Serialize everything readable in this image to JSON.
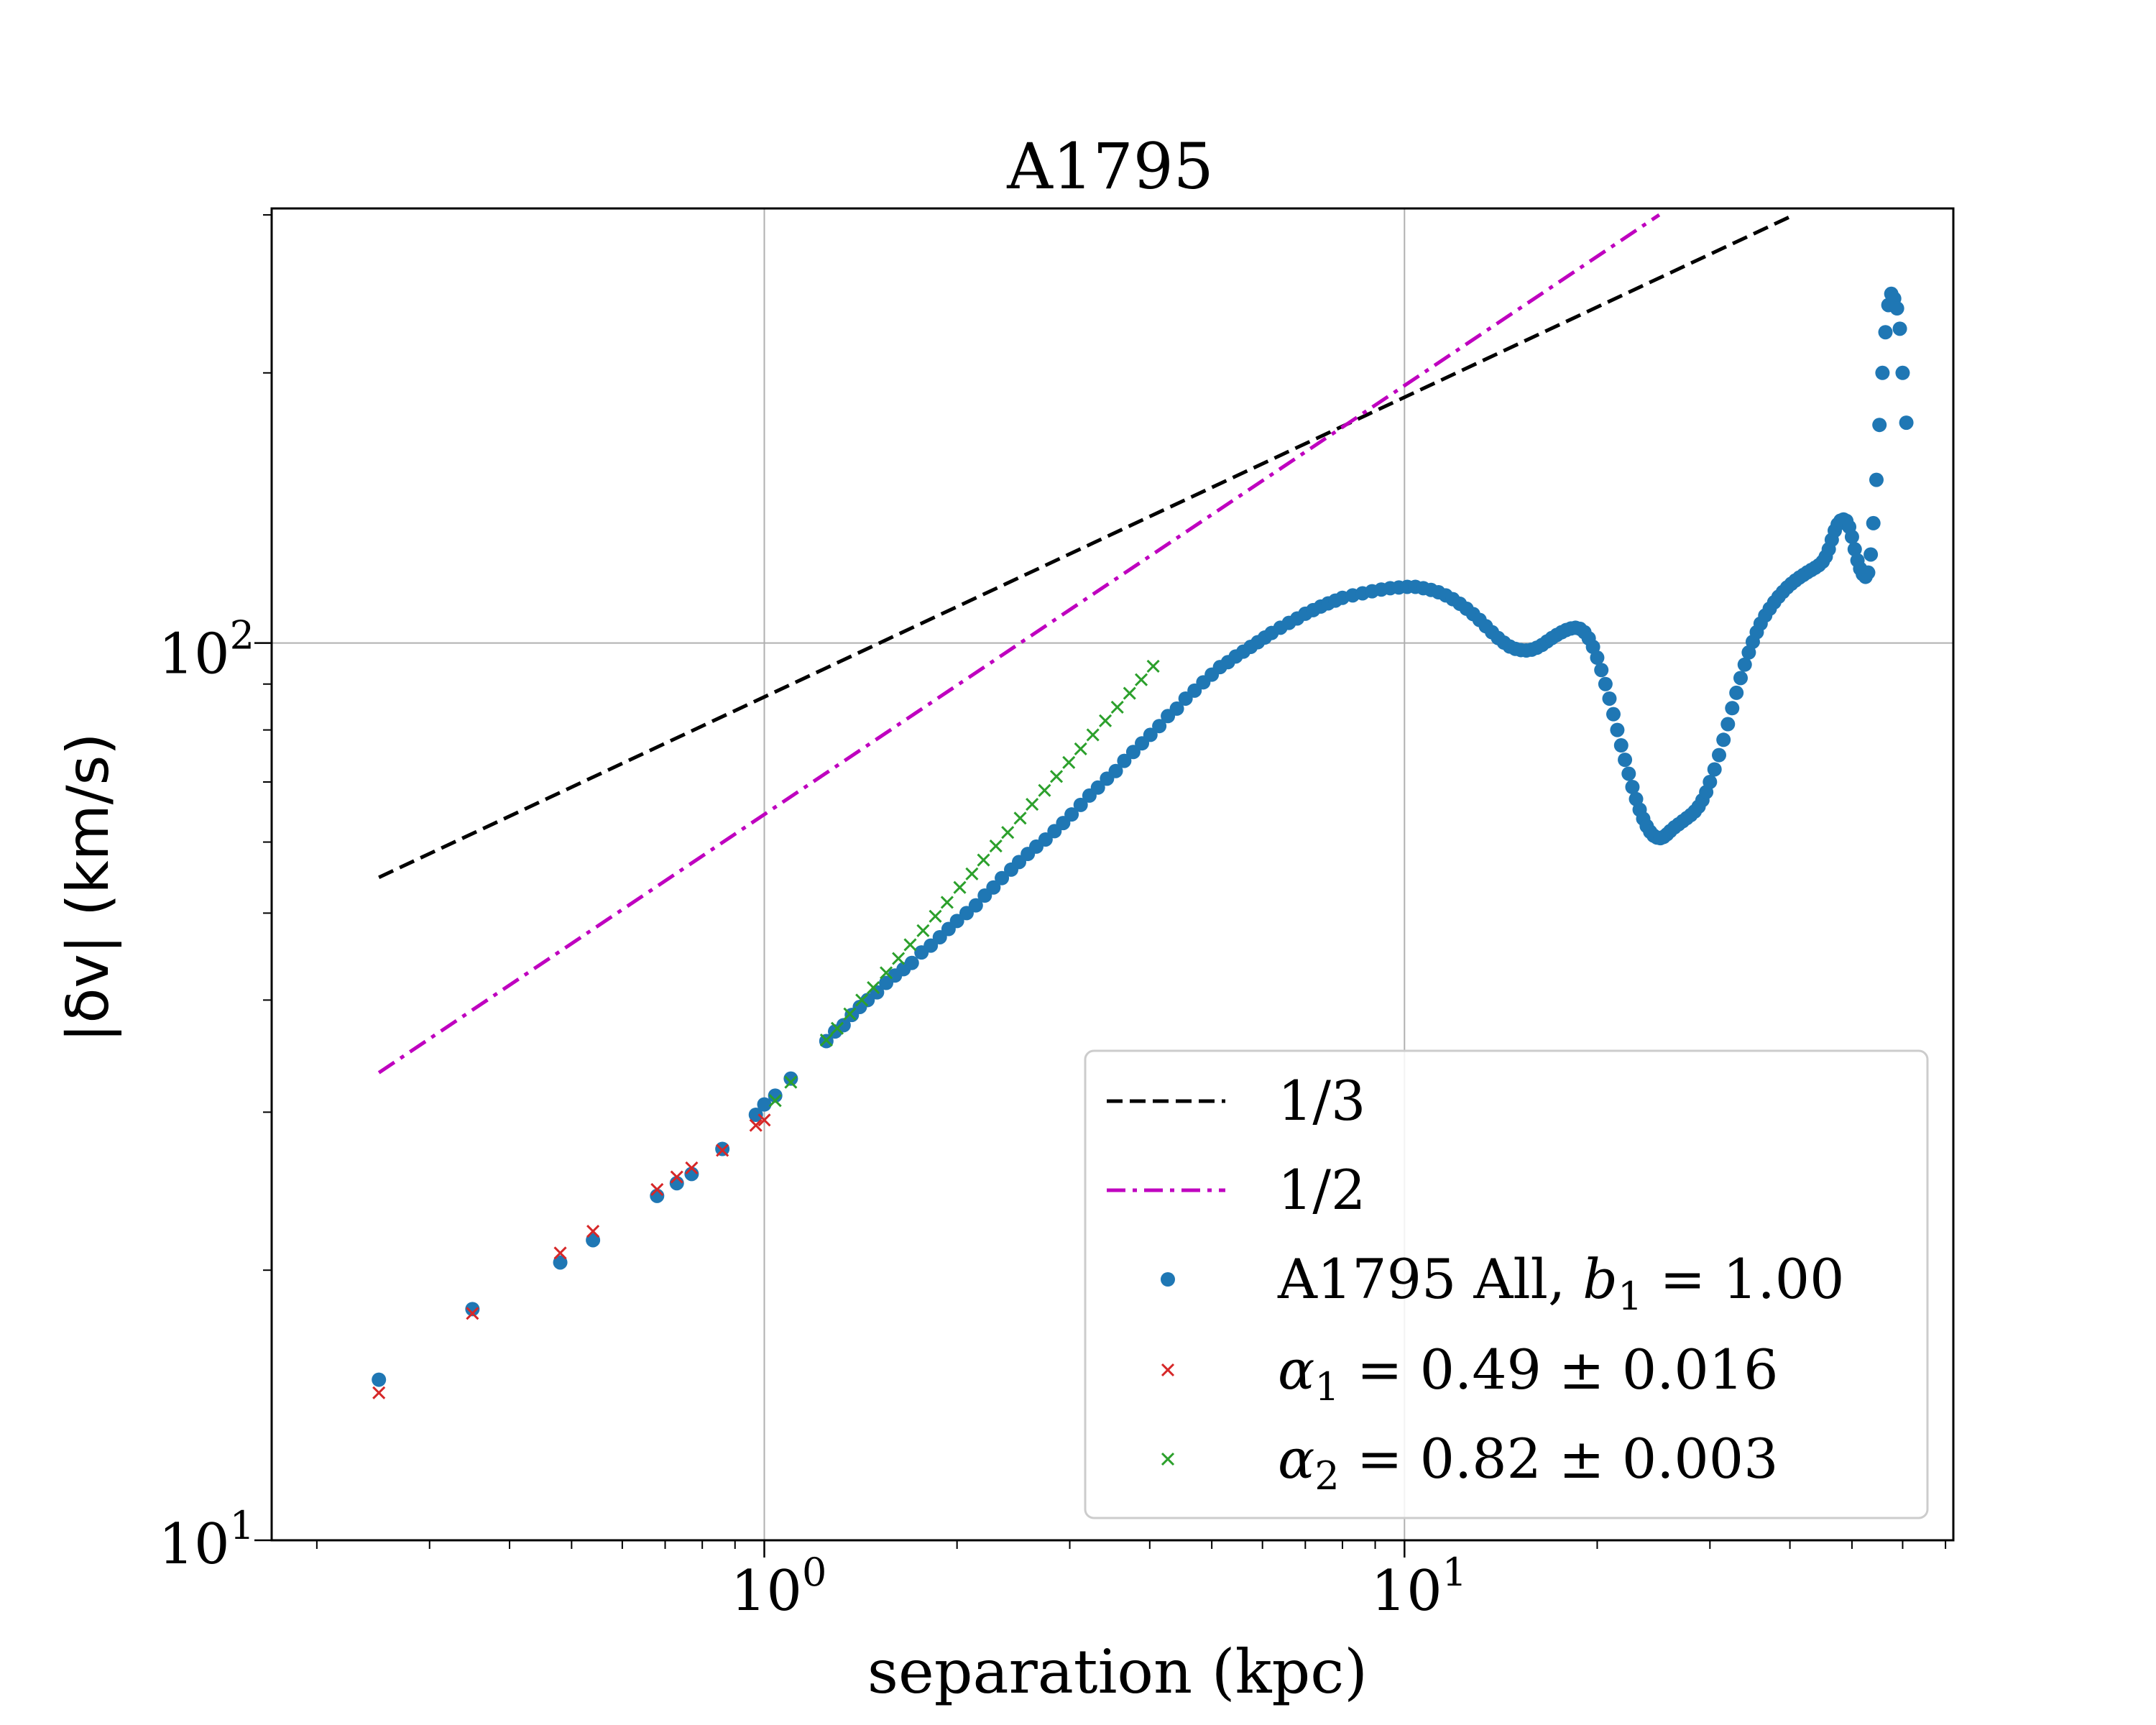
{
  "chart_data": {
    "type": "scatter",
    "title": "A1795",
    "xlabel": "separation (kpc)",
    "ylabel": "|δv| (km/s)",
    "xscale": "log",
    "yscale": "log",
    "xlim": [
      0.17,
      72
    ],
    "ylim": [
      10,
      305
    ],
    "x_ticks": [
      {
        "base": "10",
        "exp": "0",
        "value": 1
      },
      {
        "base": "10",
        "exp": "1",
        "value": 10
      }
    ],
    "y_ticks": [
      {
        "base": "10",
        "exp": "1",
        "value": 10
      },
      {
        "base": "10",
        "exp": "2",
        "value": 100
      }
    ],
    "grid": true,
    "legend_position": "lower-right",
    "colors": {
      "blue": "#1f77b4",
      "red": "#d62728",
      "green": "#2ca02c",
      "black": "#000000",
      "magenta": "#bf00bf"
    },
    "reference_lines": [
      {
        "name": "1/3",
        "style": "dashed",
        "color": "#000000",
        "points": [
          [
            0.25,
            54.8
          ],
          [
            40.6,
            300
          ]
        ]
      },
      {
        "name": "1/2",
        "style": "dashdot",
        "color": "#bf00bf",
        "points": [
          [
            0.25,
            33.2
          ],
          [
            25.0,
            300
          ]
        ]
      }
    ],
    "series": [
      {
        "name": "A1795 All, b1 = 1.00",
        "legend_prefix": "A1795 All, ",
        "legend_var": "b",
        "legend_sub": "1",
        "legend_suffix": " = 1.00",
        "marker": "circle",
        "color": "#1f77b4",
        "points": [
          [
            0.25,
            15.1
          ],
          [
            0.35,
            18.1
          ],
          [
            0.48,
            20.4
          ],
          [
            0.54,
            21.6
          ],
          [
            0.68,
            24.2
          ],
          [
            0.73,
            25.0
          ],
          [
            0.77,
            25.6
          ],
          [
            0.86,
            27.3
          ],
          [
            0.97,
            29.8
          ],
          [
            1.0,
            30.6
          ],
          [
            1.04,
            31.3
          ],
          [
            1.1,
            32.7
          ],
          [
            1.25,
            36.0
          ],
          [
            1.29,
            36.9
          ],
          [
            1.33,
            37.5
          ],
          [
            1.37,
            38.5
          ],
          [
            1.41,
            39.3
          ],
          [
            1.45,
            40.0
          ],
          [
            1.5,
            40.8
          ],
          [
            1.55,
            41.8
          ],
          [
            1.6,
            42.6
          ],
          [
            1.65,
            43.3
          ],
          [
            1.7,
            44.0
          ],
          [
            1.76,
            45.2
          ],
          [
            1.82,
            46.0
          ],
          [
            1.88,
            47.0
          ],
          [
            1.94,
            48.0
          ],
          [
            2.0,
            49.0
          ],
          [
            2.07,
            50.0
          ],
          [
            2.14,
            51.0
          ],
          [
            2.21,
            52.3
          ],
          [
            2.28,
            53.4
          ],
          [
            2.35,
            54.7
          ],
          [
            2.43,
            55.9
          ],
          [
            2.5,
            57.0
          ],
          [
            2.58,
            58.2
          ],
          [
            2.66,
            59.3
          ],
          [
            2.75,
            60.4
          ],
          [
            2.84,
            61.7
          ],
          [
            2.93,
            63.0
          ],
          [
            3.02,
            64.4
          ],
          [
            3.12,
            66.0
          ],
          [
            3.22,
            67.6
          ],
          [
            3.32,
            69.0
          ],
          [
            3.43,
            70.6
          ],
          [
            3.54,
            72.0
          ],
          [
            3.65,
            73.9
          ],
          [
            3.77,
            75.6
          ],
          [
            3.89,
            77.3
          ],
          [
            4.01,
            79.0
          ],
          [
            4.14,
            80.8
          ],
          [
            4.27,
            82.9
          ],
          [
            4.41,
            84.5
          ],
          [
            4.55,
            86.7
          ],
          [
            4.7,
            88.5
          ],
          [
            4.85,
            90.4
          ],
          [
            5.0,
            92.2
          ],
          [
            5.15,
            94.0
          ],
          [
            5.3,
            95.2
          ],
          [
            5.45,
            96.6
          ],
          [
            5.6,
            97.8
          ],
          [
            5.75,
            99.0
          ],
          [
            5.9,
            100.2
          ],
          [
            6.05,
            101.4
          ],
          [
            6.2,
            102.6
          ],
          [
            6.4,
            104.0
          ],
          [
            6.6,
            105.3
          ],
          [
            6.8,
            106.5
          ],
          [
            7.0,
            107.8
          ],
          [
            7.2,
            108.8
          ],
          [
            7.4,
            109.8
          ],
          [
            7.6,
            110.7
          ],
          [
            7.8,
            111.5
          ],
          [
            8.0,
            112.3
          ],
          [
            8.3,
            113.0
          ],
          [
            8.6,
            113.6
          ],
          [
            8.9,
            114.2
          ],
          [
            9.2,
            114.7
          ],
          [
            9.5,
            115.1
          ],
          [
            9.8,
            115.3
          ],
          [
            10.1,
            115.5
          ],
          [
            10.4,
            115.5
          ],
          [
            10.7,
            115.1
          ],
          [
            11.0,
            114.6
          ],
          [
            11.3,
            113.9
          ],
          [
            11.6,
            113.0
          ],
          [
            11.9,
            111.9
          ],
          [
            12.2,
            110.6
          ],
          [
            12.5,
            109.2
          ],
          [
            12.8,
            107.7
          ],
          [
            13.1,
            106.1
          ],
          [
            13.4,
            104.4
          ],
          [
            13.7,
            102.8
          ],
          [
            14.0,
            101.3
          ],
          [
            14.3,
            100.1
          ],
          [
            14.6,
            99.1
          ],
          [
            14.9,
            98.5
          ],
          [
            15.2,
            98.2
          ],
          [
            15.5,
            98.1
          ],
          [
            15.8,
            98.3
          ],
          [
            16.1,
            98.8
          ],
          [
            16.4,
            99.5
          ],
          [
            16.7,
            100.4
          ],
          [
            17.0,
            101.3
          ],
          [
            17.3,
            102.1
          ],
          [
            17.6,
            102.8
          ],
          [
            17.9,
            103.4
          ],
          [
            18.2,
            103.8
          ],
          [
            18.5,
            104.0
          ],
          [
            18.8,
            103.7
          ],
          [
            19.1,
            102.8
          ],
          [
            19.4,
            101.2
          ],
          [
            19.7,
            99.0
          ],
          [
            20.0,
            96.3
          ],
          [
            20.3,
            93.3
          ],
          [
            20.6,
            90.0
          ],
          [
            20.9,
            86.7
          ],
          [
            21.2,
            83.3
          ],
          [
            21.5,
            80.0
          ],
          [
            21.8,
            76.9
          ],
          [
            22.1,
            74.1
          ],
          [
            22.4,
            71.5
          ],
          [
            22.7,
            69.1
          ],
          [
            23.0,
            67.0
          ],
          [
            23.3,
            65.2
          ],
          [
            23.6,
            63.7
          ],
          [
            23.9,
            62.5
          ],
          [
            24.2,
            61.6
          ],
          [
            24.5,
            61.0
          ],
          [
            24.8,
            60.7
          ],
          [
            25.1,
            60.6
          ],
          [
            25.4,
            60.8
          ],
          [
            25.7,
            61.2
          ],
          [
            26.0,
            61.7
          ],
          [
            26.4,
            62.3
          ],
          [
            26.8,
            62.8
          ],
          [
            27.2,
            63.3
          ],
          [
            27.6,
            63.8
          ],
          [
            28.0,
            64.3
          ],
          [
            28.4,
            64.9
          ],
          [
            28.8,
            65.7
          ],
          [
            29.2,
            66.8
          ],
          [
            29.6,
            68.2
          ],
          [
            30.0,
            70.0
          ],
          [
            30.5,
            72.3
          ],
          [
            31.0,
            75.0
          ],
          [
            31.5,
            78.0
          ],
          [
            32.0,
            81.2
          ],
          [
            32.5,
            84.6
          ],
          [
            33.0,
            88.0
          ],
          [
            33.5,
            91.4
          ],
          [
            34.0,
            94.6
          ],
          [
            34.5,
            97.6
          ],
          [
            35.0,
            100.3
          ],
          [
            35.5,
            102.8
          ],
          [
            36.0,
            105.1
          ],
          [
            36.6,
            107.3
          ],
          [
            37.2,
            109.2
          ],
          [
            37.8,
            111.0
          ],
          [
            38.4,
            112.6
          ],
          [
            39.0,
            114.0
          ],
          [
            39.6,
            115.3
          ],
          [
            40.2,
            116.4
          ],
          [
            40.8,
            117.4
          ],
          [
            41.4,
            118.3
          ],
          [
            42.0,
            119.1
          ],
          [
            42.6,
            119.9
          ],
          [
            43.2,
            120.6
          ],
          [
            43.8,
            121.3
          ],
          [
            44.4,
            122.1
          ],
          [
            45.0,
            123.2
          ],
          [
            45.5,
            124.8
          ],
          [
            46.0,
            127.2
          ],
          [
            46.5,
            130.3
          ],
          [
            47.0,
            133.4
          ],
          [
            47.5,
            135.6
          ],
          [
            48.0,
            136.9
          ],
          [
            48.5,
            137.3
          ],
          [
            49.0,
            136.8
          ],
          [
            49.5,
            134.7
          ],
          [
            50.0,
            131.3
          ],
          [
            50.5,
            127.2
          ],
          [
            51.0,
            123.6
          ],
          [
            51.5,
            121.0
          ],
          [
            52.0,
            119.3
          ],
          [
            52.5,
            118.5
          ],
          [
            53.0,
            119.8
          ],
          [
            53.5,
            125.5
          ],
          [
            54.0,
            136.0
          ],
          [
            54.6,
            152.0
          ],
          [
            55.2,
            175.0
          ],
          [
            55.8,
            200.0
          ],
          [
            56.4,
            222.0
          ],
          [
            57.0,
            238.0
          ],
          [
            57.6,
            245.0
          ],
          [
            58.2,
            242.0
          ],
          [
            58.8,
            236.0
          ],
          [
            59.4,
            224.0
          ],
          [
            60.0,
            200.0
          ],
          [
            60.8,
            176.0
          ]
        ]
      },
      {
        "name": "α1 = 0.49 ± 0.016",
        "legend_var": "α",
        "legend_sub": "1",
        "legend_suffix": " = 0.49 ± 0.016",
        "marker": "x",
        "color": "#d62728",
        "points": [
          [
            0.25,
            14.6
          ],
          [
            0.35,
            17.9
          ],
          [
            0.48,
            20.9
          ],
          [
            0.54,
            22.1
          ],
          [
            0.68,
            24.6
          ],
          [
            0.73,
            25.4
          ],
          [
            0.77,
            26.0
          ],
          [
            0.86,
            27.2
          ],
          [
            0.97,
            29.0
          ],
          [
            1.0,
            29.4
          ]
        ]
      },
      {
        "name": "α2 = 0.82 ± 0.003",
        "legend_var": "α",
        "legend_sub": "2",
        "legend_suffix": " = 0.82 ± 0.003",
        "marker": "x",
        "color": "#2ca02c",
        "points": [
          [
            1.04,
            30.9
          ],
          [
            1.1,
            32.4
          ],
          [
            1.25,
            36.1
          ],
          [
            1.3,
            37.2
          ],
          [
            1.36,
            38.6
          ],
          [
            1.42,
            40.0
          ],
          [
            1.48,
            41.3
          ],
          [
            1.55,
            42.9
          ],
          [
            1.62,
            44.5
          ],
          [
            1.69,
            46.1
          ],
          [
            1.77,
            47.8
          ],
          [
            1.85,
            49.6
          ],
          [
            1.93,
            51.4
          ],
          [
            2.02,
            53.4
          ],
          [
            2.11,
            55.3
          ],
          [
            2.2,
            57.3
          ],
          [
            2.3,
            59.4
          ],
          [
            2.4,
            61.5
          ],
          [
            2.51,
            63.8
          ],
          [
            2.62,
            66.1
          ],
          [
            2.74,
            68.5
          ],
          [
            2.86,
            71.0
          ],
          [
            2.99,
            73.6
          ],
          [
            3.12,
            76.2
          ],
          [
            3.26,
            79.0
          ],
          [
            3.41,
            81.9
          ],
          [
            3.56,
            84.8
          ],
          [
            3.72,
            87.9
          ],
          [
            3.88,
            91.0
          ],
          [
            4.05,
            94.2
          ]
        ]
      }
    ]
  }
}
